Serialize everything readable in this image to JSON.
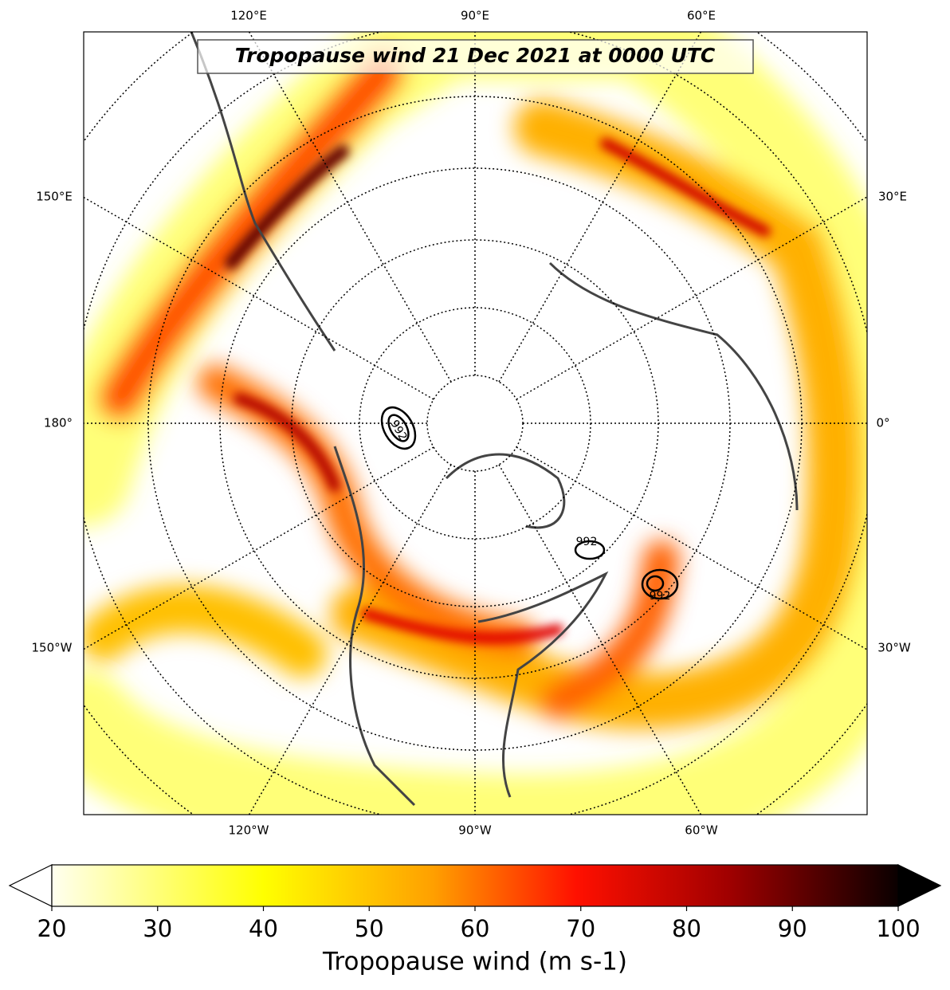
{
  "title": "Tropopause wind 21 Dec 2021 at 0000 UTC",
  "lon_labels": {
    "top": [
      "120°E",
      "90°E",
      "60°E"
    ],
    "left": [
      "150°E",
      "180°",
      "150°W"
    ],
    "right": [
      "30°E",
      "0°",
      "30°W"
    ],
    "bottom": [
      "120°W",
      "90°W",
      "60°W"
    ]
  },
  "contour_labels": [
    "992",
    "992",
    "992"
  ],
  "colorbar": {
    "label": "Tropopause wind (m s-1)",
    "lim": [
      20,
      100
    ],
    "ticks": [
      20,
      30,
      40,
      50,
      60,
      70,
      80,
      90,
      100
    ]
  }
}
